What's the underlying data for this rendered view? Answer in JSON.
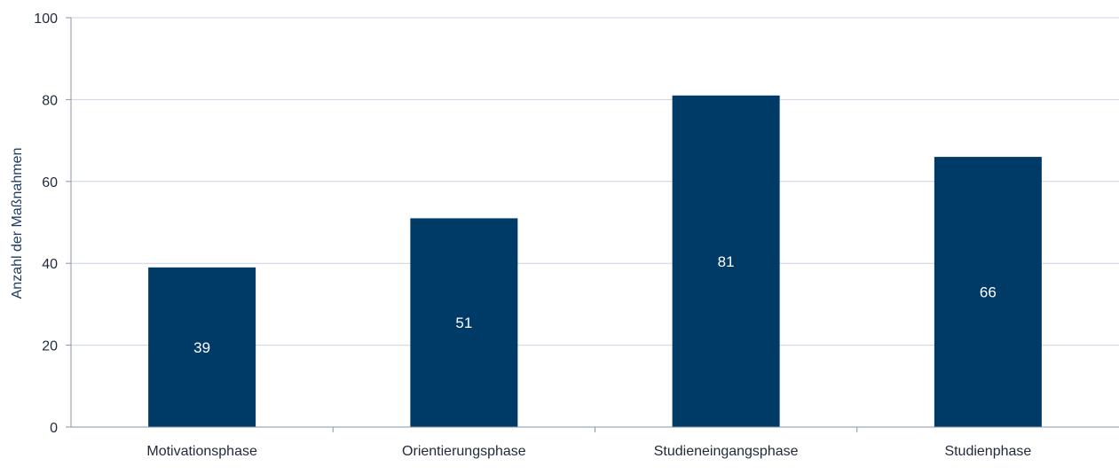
{
  "chart_data": {
    "type": "bar",
    "title": "",
    "xlabel": "",
    "ylabel": "Anzahl der Maßnahmen",
    "categories": [
      "Motivationsphase",
      "Orientierungsphase",
      "Studieneingangsphase",
      "Studienphase"
    ],
    "values": [
      39,
      51,
      81,
      66
    ],
    "data_labels": [
      "39",
      "51",
      "81",
      "66"
    ],
    "ylim": [
      0,
      100
    ],
    "yticks": [
      0,
      20,
      40,
      60,
      80,
      100
    ],
    "ytick_labels": [
      "0",
      "20",
      "40",
      "60",
      "80",
      "100"
    ],
    "grid": true,
    "legend": "none"
  },
  "colors": {
    "bar": "#003a66",
    "grid": "#c9d3e6",
    "axis": "#8a95a8"
  }
}
